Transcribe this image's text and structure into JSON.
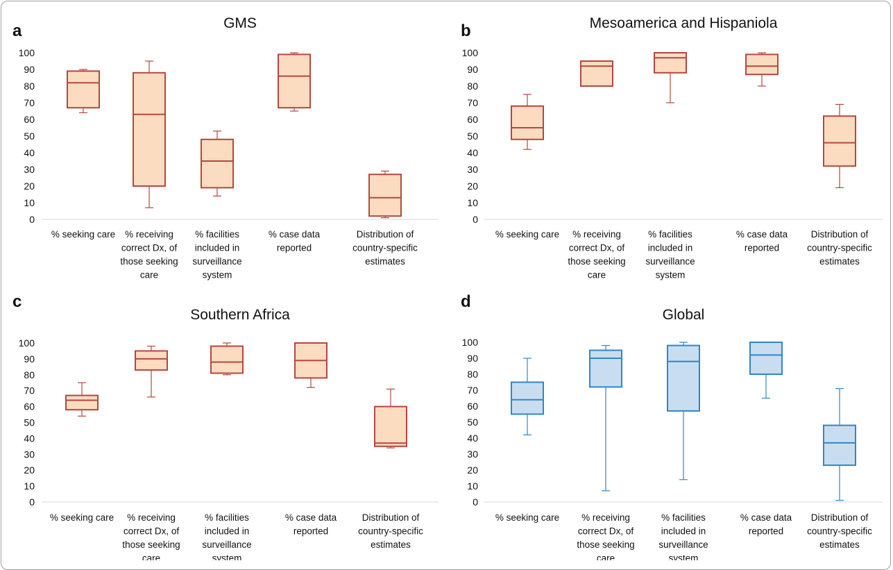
{
  "chart_data": [
    {
      "type": "box",
      "panel_letter": "a",
      "title": "GMS",
      "color": {
        "fill": "#fcdcc0",
        "stroke": "#b5473f"
      },
      "ylim": [
        0,
        100
      ],
      "yticks": [
        "0",
        "10",
        "20",
        "30",
        "40",
        "50",
        "60",
        "70",
        "80",
        "90",
        "100"
      ],
      "categories": [
        [
          "% seeking care"
        ],
        [
          "% receiving",
          "correct Dx, of",
          "those seeking",
          "care"
        ],
        [
          "% facilities",
          "included in",
          "surveillance",
          "system"
        ],
        [
          "% case data",
          "reported"
        ],
        [
          "Distribution of",
          "country-specific",
          "estimates"
        ]
      ],
      "boxes": [
        {
          "min": 64,
          "q1": 67,
          "median": 82,
          "q3": 89,
          "max": 90
        },
        {
          "min": 7,
          "q1": 20,
          "median": 63,
          "q3": 88,
          "max": 95
        },
        {
          "min": 14,
          "q1": 19,
          "median": 35,
          "q3": 48,
          "max": 53
        },
        {
          "min": 65,
          "q1": 67,
          "median": 86,
          "q3": 99,
          "max": 100
        },
        {
          "min": 1,
          "q1": 2,
          "median": 13,
          "q3": 27,
          "max": 29
        }
      ]
    },
    {
      "type": "box",
      "panel_letter": "b",
      "title": "Mesoamerica and Hispaniola",
      "color": {
        "fill": "#fcdcc0",
        "stroke": "#b5473f"
      },
      "ylim": [
        0,
        100
      ],
      "yticks": [
        "0",
        "10",
        "20",
        "30",
        "40",
        "50",
        "60",
        "70",
        "80",
        "90",
        "100"
      ],
      "categories": [
        [
          "% seeking care"
        ],
        [
          "% receiving",
          "correct Dx, of",
          "those seeking",
          "care"
        ],
        [
          "% facilities",
          "included in",
          "surveillance",
          "system"
        ],
        [
          "% case data",
          "reported"
        ],
        [
          "Distribution of",
          "country-specific",
          "estimates"
        ]
      ],
      "boxes": [
        {
          "min": 42,
          "q1": 48,
          "median": 55,
          "q3": 68,
          "max": 75
        },
        {
          "min": 80,
          "q1": 80,
          "median": 92,
          "q3": 95,
          "max": 95
        },
        {
          "min": 70,
          "q1": 88,
          "median": 97,
          "q3": 100,
          "max": 100
        },
        {
          "min": 80,
          "q1": 87,
          "median": 92,
          "q3": 99,
          "max": 100
        },
        {
          "min": 19,
          "q1": 32,
          "median": 46,
          "q3": 62,
          "max": 69
        }
      ]
    },
    {
      "type": "box",
      "panel_letter": "c",
      "title": "Southern Africa",
      "color": {
        "fill": "#fcdcc0",
        "stroke": "#b5473f"
      },
      "ylim": [
        0,
        100
      ],
      "yticks": [
        "0",
        "10",
        "20",
        "30",
        "40",
        "50",
        "60",
        "70",
        "80",
        "90",
        "100"
      ],
      "categories": [
        [
          "% seeking care"
        ],
        [
          "% receiving",
          "correct Dx, of",
          "those seeking",
          "care"
        ],
        [
          "% facilities",
          "included in",
          "surveillance",
          "system"
        ],
        [
          "% case data",
          "reported"
        ],
        [
          "Distribution of",
          "country-specific",
          "estimates"
        ]
      ],
      "boxes": [
        {
          "min": 54,
          "q1": 58,
          "median": 64,
          "q3": 67,
          "max": 75
        },
        {
          "min": 66,
          "q1": 83,
          "median": 90,
          "q3": 95,
          "max": 98
        },
        {
          "min": 80,
          "q1": 81,
          "median": 88,
          "q3": 98,
          "max": 100
        },
        {
          "min": 72,
          "q1": 78,
          "median": 89,
          "q3": 100,
          "max": 100
        },
        {
          "min": 34,
          "q1": 35,
          "median": 37,
          "q3": 60,
          "max": 71
        }
      ]
    },
    {
      "type": "box",
      "panel_letter": "d",
      "title": "Global",
      "color": {
        "fill": "#c9ddf1",
        "stroke": "#2e87c9"
      },
      "ylim": [
        0,
        100
      ],
      "yticks": [
        "0",
        "10",
        "20",
        "30",
        "40",
        "50",
        "60",
        "70",
        "80",
        "90",
        "100"
      ],
      "categories": [
        [
          "% seeking care"
        ],
        [
          "% receiving",
          "correct Dx, of",
          "those seeking",
          "care"
        ],
        [
          "% facilities",
          "included in",
          "surveillance",
          "system"
        ],
        [
          "% case data",
          "reported"
        ],
        [
          "Distribution of",
          "country-specific",
          "estimates"
        ]
      ],
      "boxes": [
        {
          "min": 42,
          "q1": 55,
          "median": 64,
          "q3": 75,
          "max": 90
        },
        {
          "min": 7,
          "q1": 72,
          "median": 90,
          "q3": 95,
          "max": 98
        },
        {
          "min": 14,
          "q1": 57,
          "median": 88,
          "q3": 98,
          "max": 100
        },
        {
          "min": 65,
          "q1": 80,
          "median": 92,
          "q3": 100,
          "max": 100
        },
        {
          "min": 1,
          "q1": 23,
          "median": 37,
          "q3": 48,
          "max": 71
        }
      ]
    }
  ]
}
